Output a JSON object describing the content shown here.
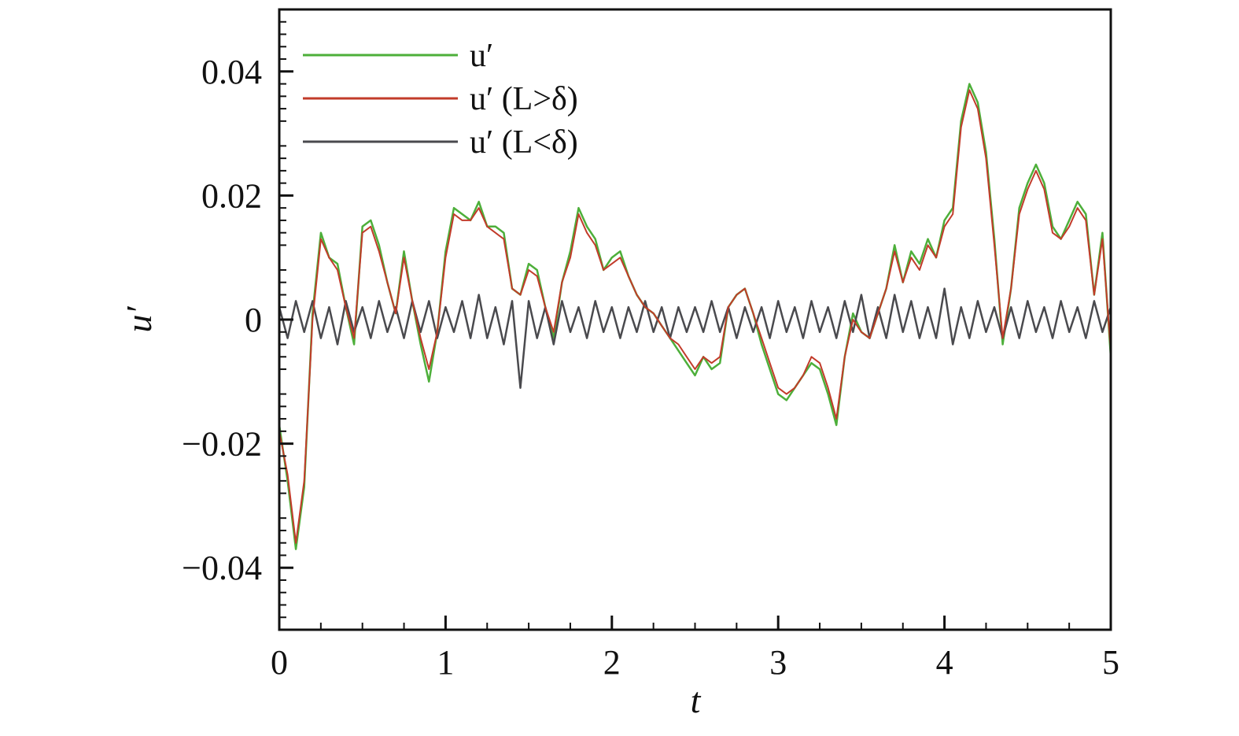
{
  "chart_data": {
    "type": "line",
    "title": "",
    "xlabel": "t",
    "ylabel": "u′",
    "xlim": [
      0,
      5
    ],
    "ylim": [
      -0.05,
      0.05
    ],
    "x_ticks": [
      0,
      1,
      2,
      3,
      4,
      5
    ],
    "x_tick_labels": [
      "0",
      "1",
      "2",
      "3",
      "4",
      "5"
    ],
    "y_ticks": [
      -0.04,
      -0.02,
      0,
      0.02,
      0.04
    ],
    "y_tick_labels": [
      "−0.04",
      "−0.02",
      "0",
      "0.02",
      "0.04"
    ],
    "grid": false,
    "legend_position": "top-left",
    "series": [
      {
        "name": "u′",
        "color": "#4daf3a",
        "x": [
          0,
          0.05,
          0.1,
          0.15,
          0.2,
          0.25,
          0.3,
          0.35,
          0.4,
          0.45,
          0.5,
          0.55,
          0.6,
          0.65,
          0.7,
          0.75,
          0.8,
          0.85,
          0.9,
          0.95,
          1.0,
          1.05,
          1.1,
          1.15,
          1.2,
          1.25,
          1.3,
          1.35,
          1.4,
          1.45,
          1.5,
          1.55,
          1.6,
          1.65,
          1.7,
          1.75,
          1.8,
          1.85,
          1.9,
          1.95,
          2.0,
          2.05,
          2.1,
          2.15,
          2.2,
          2.25,
          2.3,
          2.35,
          2.4,
          2.45,
          2.5,
          2.55,
          2.6,
          2.65,
          2.7,
          2.75,
          2.8,
          2.85,
          2.9,
          2.95,
          3.0,
          3.05,
          3.1,
          3.15,
          3.2,
          3.25,
          3.3,
          3.35,
          3.4,
          3.45,
          3.5,
          3.55,
          3.6,
          3.65,
          3.7,
          3.75,
          3.8,
          3.85,
          3.9,
          3.95,
          4.0,
          4.05,
          4.1,
          4.15,
          4.2,
          4.25,
          4.3,
          4.35,
          4.4,
          4.45,
          4.5,
          4.55,
          4.6,
          4.65,
          4.7,
          4.75,
          4.8,
          4.85,
          4.9,
          4.95,
          5.0
        ],
        "y": [
          -0.017,
          -0.026,
          -0.037,
          -0.027,
          0.001,
          0.014,
          0.01,
          0.009,
          0.002,
          -0.004,
          0.015,
          0.016,
          0.012,
          0.006,
          0.001,
          0.011,
          0.003,
          -0.004,
          -0.01,
          -0.002,
          0.011,
          0.018,
          0.017,
          0.016,
          0.019,
          0.015,
          0.015,
          0.014,
          0.005,
          0.004,
          0.009,
          0.008,
          0.002,
          -0.003,
          0.006,
          0.011,
          0.018,
          0.015,
          0.013,
          0.008,
          0.01,
          0.011,
          0.007,
          0.004,
          0.002,
          0.001,
          -0.001,
          -0.003,
          -0.005,
          -0.007,
          -0.009,
          -0.006,
          -0.008,
          -0.007,
          0.002,
          0.004,
          0.005,
          0.001,
          -0.004,
          -0.008,
          -0.012,
          -0.013,
          -0.011,
          -0.009,
          -0.007,
          -0.008,
          -0.012,
          -0.017,
          -0.006,
          0.001,
          -0.002,
          -0.003,
          0.001,
          0.005,
          0.012,
          0.006,
          0.011,
          0.009,
          0.013,
          0.01,
          0.016,
          0.018,
          0.032,
          0.038,
          0.035,
          0.027,
          0.013,
          -0.004,
          0.005,
          0.018,
          0.022,
          0.025,
          0.022,
          0.015,
          0.013,
          0.016,
          0.019,
          0.017,
          0.004,
          0.014,
          -0.006
        ]
      },
      {
        "name": "u′ (L>δ)",
        "color": "#c23b2a",
        "x": [
          0,
          0.05,
          0.1,
          0.15,
          0.2,
          0.25,
          0.3,
          0.35,
          0.4,
          0.45,
          0.5,
          0.55,
          0.6,
          0.65,
          0.7,
          0.75,
          0.8,
          0.85,
          0.9,
          0.95,
          1.0,
          1.05,
          1.1,
          1.15,
          1.2,
          1.25,
          1.3,
          1.35,
          1.4,
          1.45,
          1.5,
          1.55,
          1.6,
          1.65,
          1.7,
          1.75,
          1.8,
          1.85,
          1.9,
          1.95,
          2.0,
          2.05,
          2.1,
          2.15,
          2.2,
          2.25,
          2.3,
          2.35,
          2.4,
          2.45,
          2.5,
          2.55,
          2.6,
          2.65,
          2.7,
          2.75,
          2.8,
          2.85,
          2.9,
          2.95,
          3.0,
          3.05,
          3.1,
          3.15,
          3.2,
          3.25,
          3.3,
          3.35,
          3.4,
          3.45,
          3.5,
          3.55,
          3.6,
          3.65,
          3.7,
          3.75,
          3.8,
          3.85,
          3.9,
          3.95,
          4.0,
          4.05,
          4.1,
          4.15,
          4.2,
          4.25,
          4.3,
          4.35,
          4.4,
          4.45,
          4.5,
          4.55,
          4.6,
          4.65,
          4.7,
          4.75,
          4.8,
          4.85,
          4.9,
          4.95,
          5.0
        ],
        "y": [
          -0.018,
          -0.025,
          -0.036,
          -0.026,
          0.0,
          0.013,
          0.01,
          0.008,
          0.002,
          -0.003,
          0.014,
          0.015,
          0.011,
          0.006,
          0.001,
          0.01,
          0.003,
          -0.003,
          -0.008,
          -0.002,
          0.01,
          0.017,
          0.016,
          0.016,
          0.018,
          0.015,
          0.014,
          0.013,
          0.005,
          0.004,
          0.008,
          0.007,
          0.002,
          -0.002,
          0.006,
          0.01,
          0.017,
          0.014,
          0.012,
          0.008,
          0.009,
          0.01,
          0.007,
          0.004,
          0.002,
          0.001,
          -0.001,
          -0.003,
          -0.004,
          -0.006,
          -0.008,
          -0.006,
          -0.007,
          -0.006,
          0.002,
          0.004,
          0.005,
          0.001,
          -0.003,
          -0.007,
          -0.011,
          -0.012,
          -0.011,
          -0.009,
          -0.006,
          -0.007,
          -0.011,
          -0.016,
          -0.006,
          0.0,
          -0.002,
          -0.003,
          0.001,
          0.005,
          0.011,
          0.006,
          0.01,
          0.008,
          0.012,
          0.01,
          0.015,
          0.017,
          0.031,
          0.037,
          0.034,
          0.026,
          0.012,
          -0.003,
          0.005,
          0.017,
          0.021,
          0.024,
          0.021,
          0.014,
          0.013,
          0.015,
          0.018,
          0.016,
          0.004,
          0.013,
          -0.005
        ]
      },
      {
        "name": "u′ (L<δ)",
        "color": "#4a4a4e",
        "x": [
          0,
          0.05,
          0.1,
          0.15,
          0.2,
          0.25,
          0.3,
          0.35,
          0.4,
          0.45,
          0.5,
          0.55,
          0.6,
          0.65,
          0.7,
          0.75,
          0.8,
          0.85,
          0.9,
          0.95,
          1.0,
          1.05,
          1.1,
          1.15,
          1.2,
          1.25,
          1.3,
          1.35,
          1.4,
          1.45,
          1.5,
          1.55,
          1.6,
          1.65,
          1.7,
          1.75,
          1.8,
          1.85,
          1.9,
          1.95,
          2.0,
          2.05,
          2.1,
          2.15,
          2.2,
          2.25,
          2.3,
          2.35,
          2.4,
          2.45,
          2.5,
          2.55,
          2.6,
          2.65,
          2.7,
          2.75,
          2.8,
          2.85,
          2.9,
          2.95,
          3.0,
          3.05,
          3.1,
          3.15,
          3.2,
          3.25,
          3.3,
          3.35,
          3.4,
          3.45,
          3.5,
          3.55,
          3.6,
          3.65,
          3.7,
          3.75,
          3.8,
          3.85,
          3.9,
          3.95,
          4.0,
          4.05,
          4.1,
          4.15,
          4.2,
          4.25,
          4.3,
          4.35,
          4.4,
          4.45,
          4.5,
          4.55,
          4.6,
          4.65,
          4.7,
          4.75,
          4.8,
          4.85,
          4.9,
          4.95,
          5.0
        ],
        "y": [
          0.002,
          -0.003,
          0.003,
          -0.002,
          0.003,
          -0.003,
          0.002,
          -0.004,
          0.003,
          -0.002,
          0.002,
          -0.003,
          0.003,
          -0.002,
          0.002,
          -0.003,
          0.003,
          -0.002,
          0.003,
          -0.003,
          0.002,
          -0.002,
          0.003,
          -0.003,
          0.004,
          -0.003,
          0.002,
          -0.004,
          0.003,
          -0.011,
          0.003,
          -0.003,
          0.002,
          -0.004,
          0.003,
          -0.002,
          0.002,
          -0.003,
          0.003,
          -0.002,
          0.002,
          -0.003,
          0.002,
          -0.002,
          0.003,
          -0.002,
          0.002,
          -0.003,
          0.002,
          -0.002,
          0.002,
          -0.002,
          0.003,
          -0.002,
          0.002,
          -0.003,
          0.002,
          -0.002,
          0.002,
          -0.003,
          0.003,
          -0.002,
          0.002,
          -0.003,
          0.003,
          -0.002,
          0.002,
          -0.003,
          0.003,
          -0.002,
          0.004,
          -0.003,
          0.002,
          -0.003,
          0.004,
          -0.002,
          0.003,
          -0.003,
          0.002,
          -0.003,
          0.005,
          -0.004,
          0.002,
          -0.003,
          0.003,
          -0.002,
          0.002,
          -0.003,
          0.002,
          -0.003,
          0.003,
          -0.002,
          0.002,
          -0.003,
          0.003,
          -0.002,
          0.002,
          -0.003,
          0.003,
          -0.002,
          0.002
        ]
      }
    ]
  }
}
